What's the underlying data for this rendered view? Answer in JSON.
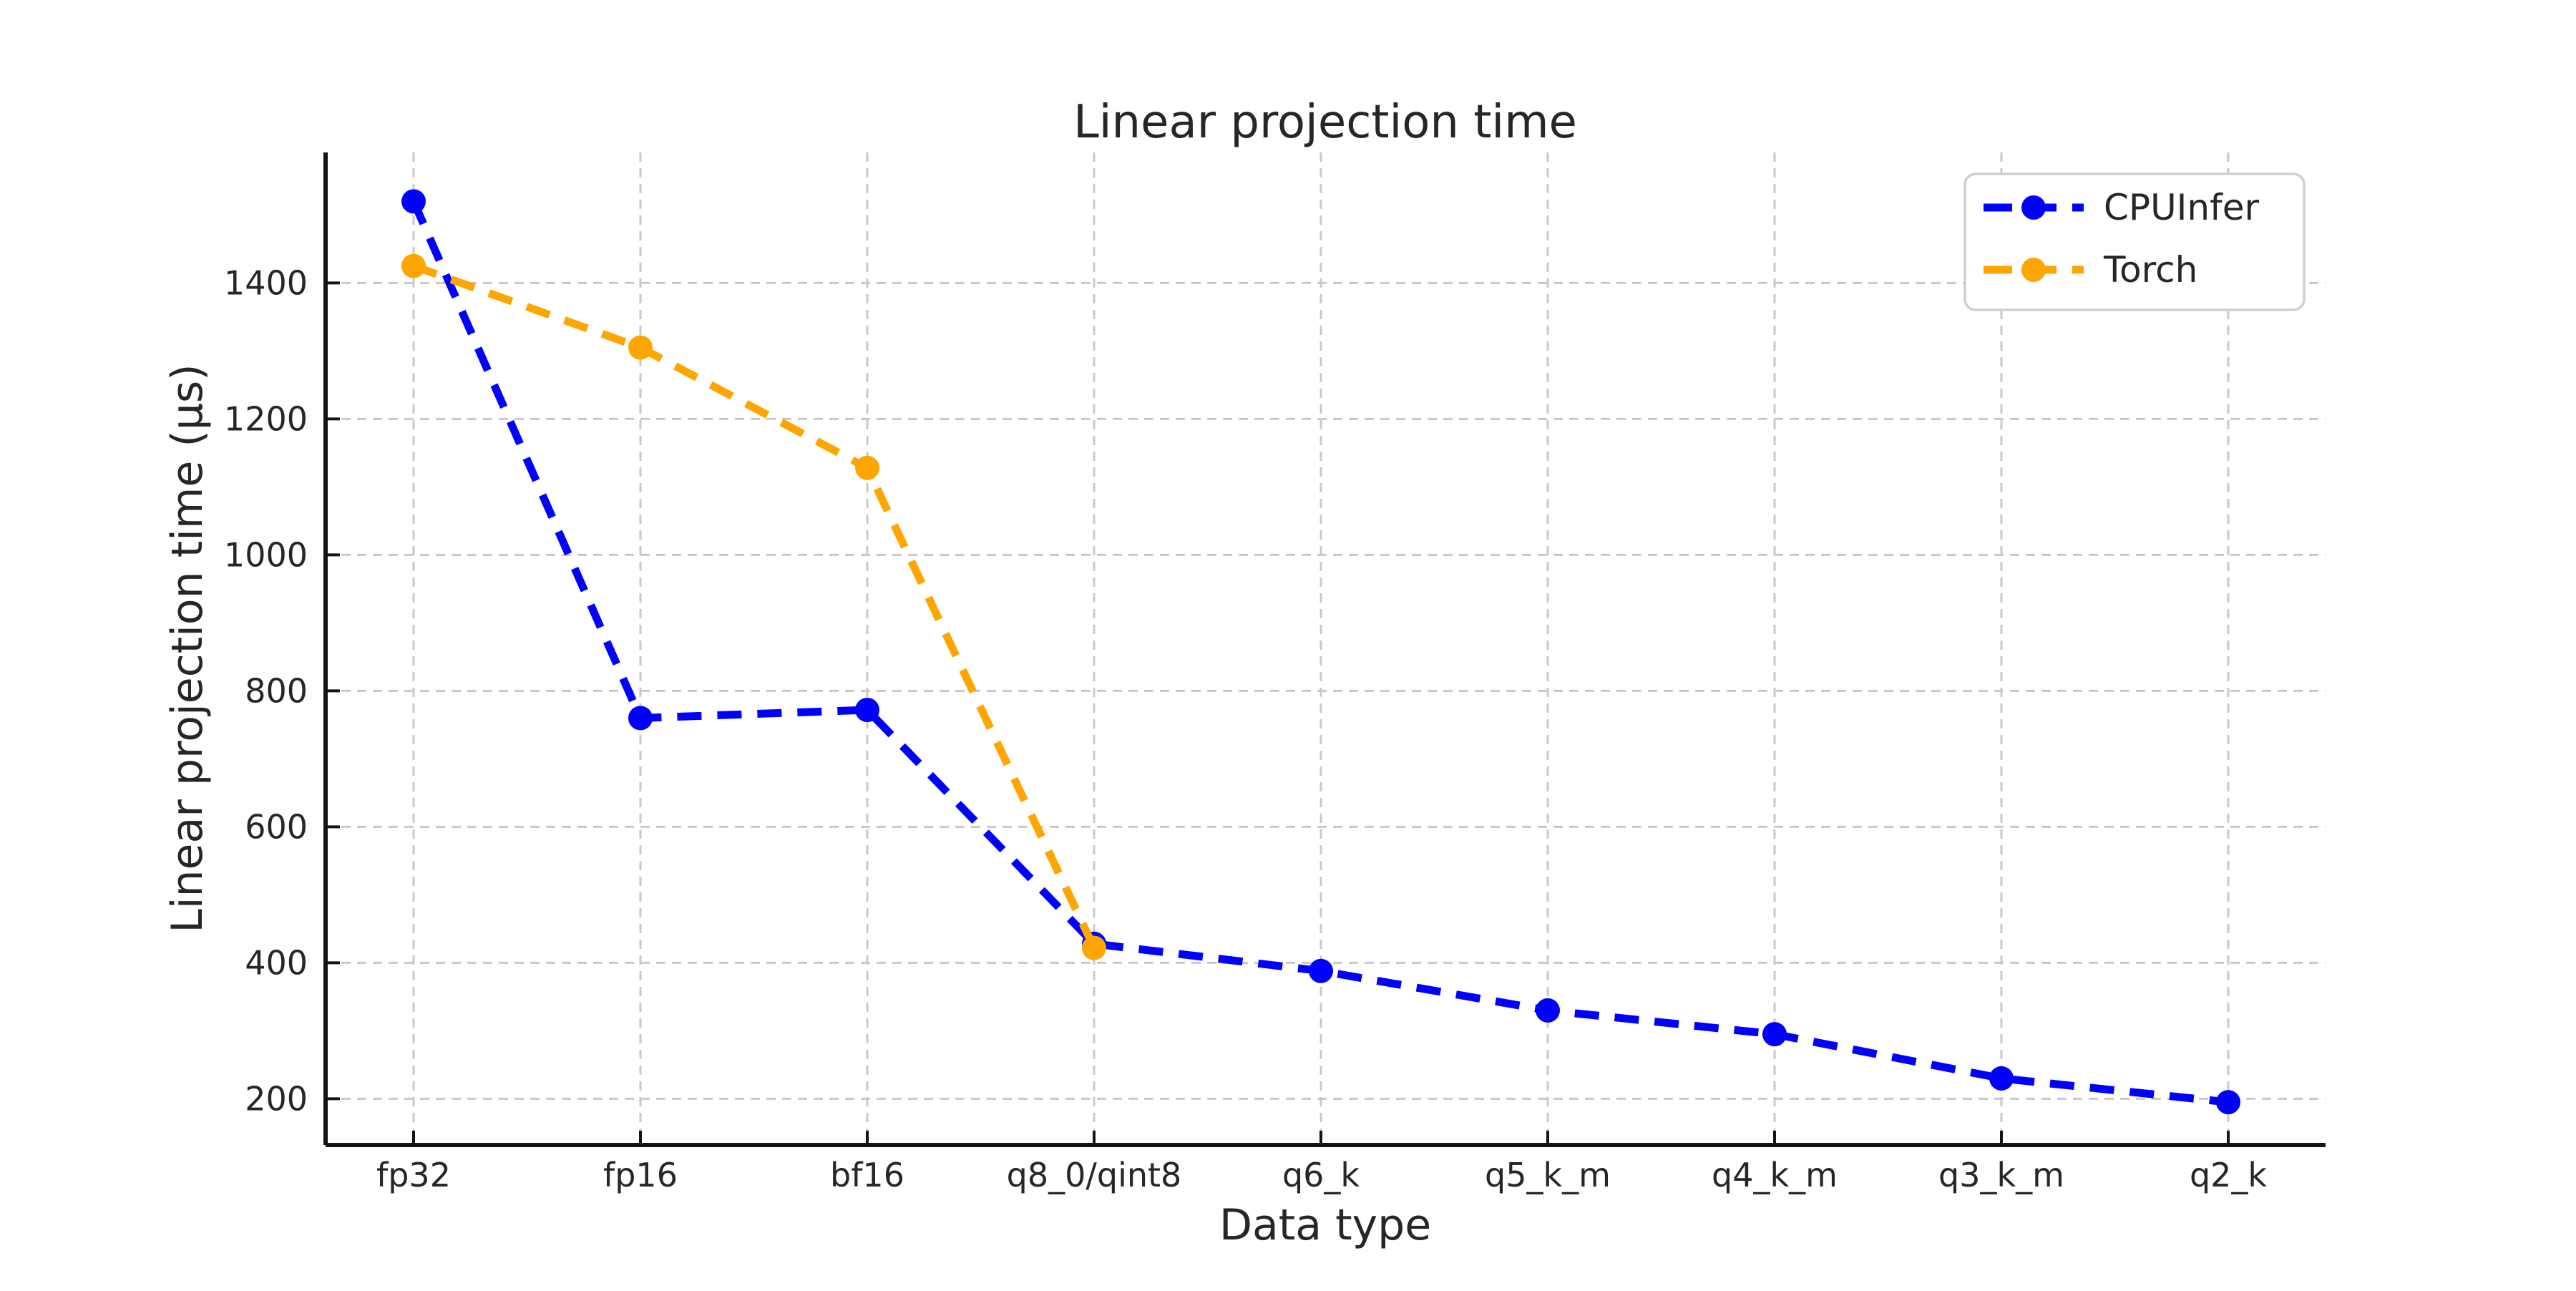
{
  "chart_data": {
    "type": "line",
    "title": "Linear projection time",
    "xlabel": "Data type",
    "ylabel": "Linear projection time (μs)",
    "categories": [
      "fp32",
      "fp16",
      "bf16",
      "q8_0/qint8",
      "q6_k",
      "q5_k_m",
      "q4_k_m",
      "q3_k_m",
      "q2_k"
    ],
    "yticks": [
      200,
      400,
      600,
      800,
      1000,
      1200,
      1400
    ],
    "ylim": [
      132,
      1592
    ],
    "grid": true,
    "grid_style": "dashed",
    "legend_position": "upper right",
    "background_color": "#ffffff",
    "series": [
      {
        "name": "CPUInfer",
        "color": "#0000ff",
        "linestyle": "dashed",
        "marker": "circle",
        "values": [
          1520,
          760,
          772,
          428,
          388,
          330,
          295,
          230,
          195
        ]
      },
      {
        "name": "Torch",
        "color": "#ffa500",
        "linestyle": "dashed",
        "marker": "circle",
        "values": [
          1425,
          1305,
          1128,
          422,
          null,
          null,
          null,
          null,
          null
        ]
      }
    ]
  }
}
